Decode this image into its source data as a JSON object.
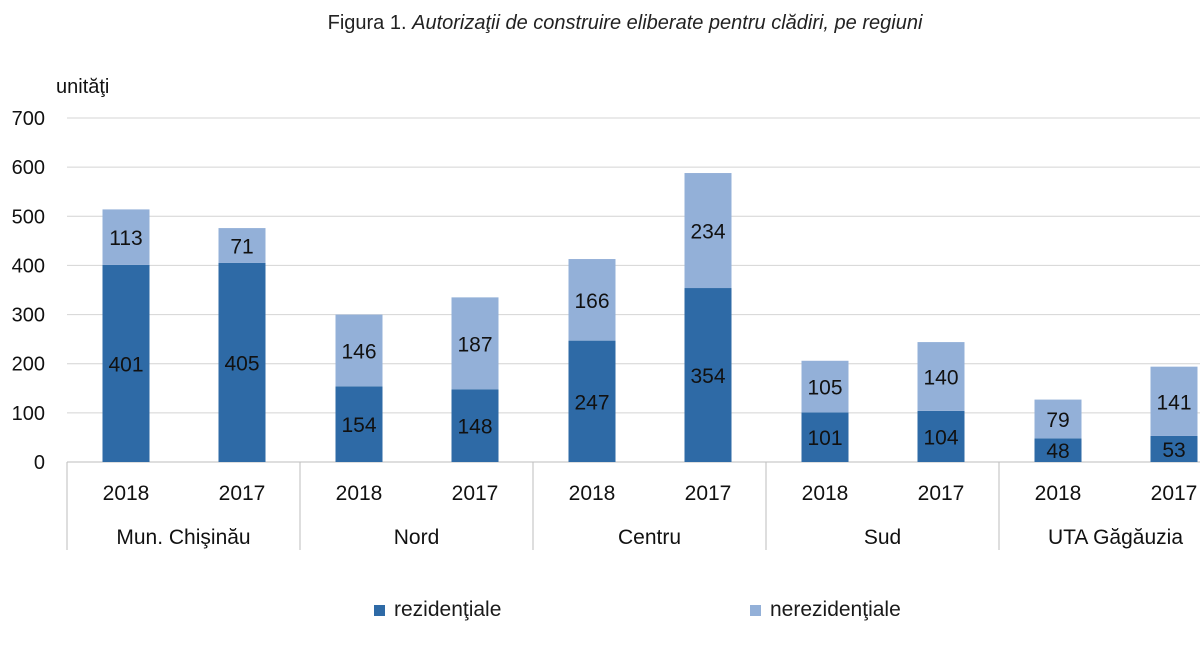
{
  "figure": {
    "label": "Figura 1.",
    "caption": "Autorizaţii de construire eliberate pentru clădiri, pe regiuni"
  },
  "colors": {
    "rezidentiale": "#2e6aa6",
    "nerezidentiale": "#93b0d8",
    "grid": "#d4d4d4",
    "axis": "#bdbdbd"
  },
  "chart_data": {
    "type": "bar",
    "stacked": true,
    "title": "Autorizaţii de construire eliberate pentru clădiri, pe regiuni",
    "ylabel": "unităţi",
    "ylim": [
      0,
      700
    ],
    "yticks": [
      0,
      100,
      200,
      300,
      400,
      500,
      600,
      700
    ],
    "grid": true,
    "legend_position": "bottom",
    "groups": [
      {
        "name": "Mun. Chişinău",
        "years": [
          "2018",
          "2017"
        ]
      },
      {
        "name": "Nord",
        "years": [
          "2018",
          "2017"
        ]
      },
      {
        "name": "Centru",
        "years": [
          "2018",
          "2017"
        ]
      },
      {
        "name": "Sud",
        "years": [
          "2018",
          "2017"
        ]
      },
      {
        "name": "UTA Găgăuzia",
        "years": [
          "2018",
          "2017"
        ]
      }
    ],
    "series": [
      {
        "name": "rezidenţiale",
        "values": [
          401,
          405,
          154,
          148,
          247,
          354,
          101,
          104,
          48,
          53
        ]
      },
      {
        "name": "nerezidenţiale",
        "values": [
          113,
          71,
          146,
          187,
          166,
          234,
          105,
          140,
          79,
          141
        ]
      }
    ]
  }
}
